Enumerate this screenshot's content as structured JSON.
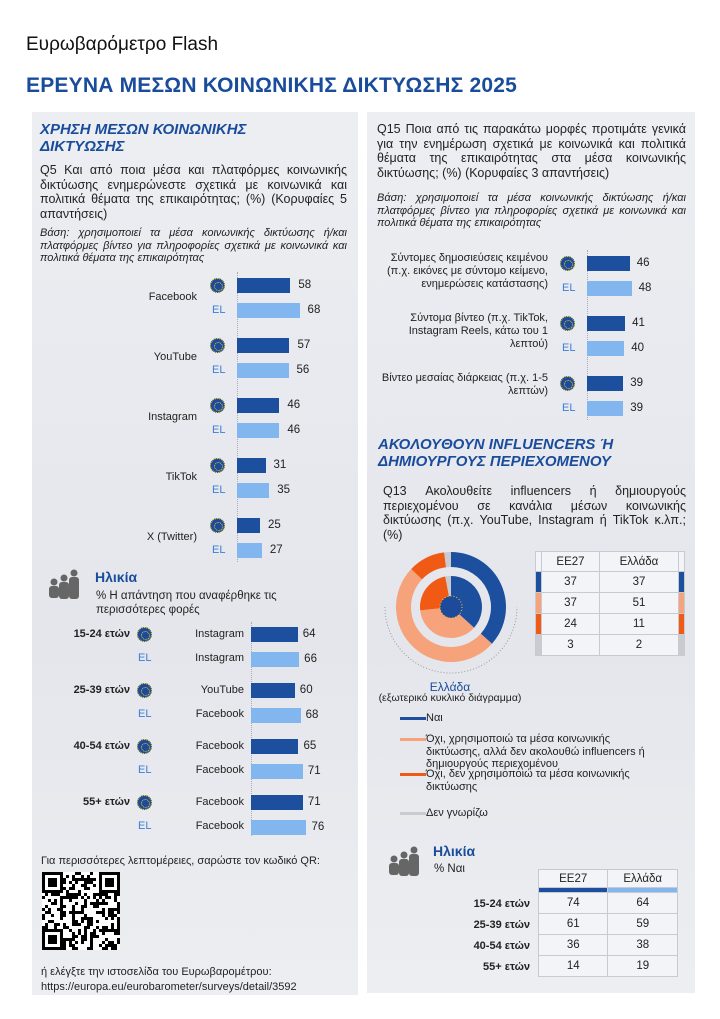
{
  "header": {
    "brand": "Ευρωβαρόμετρο Flash",
    "title": "ΕΡΕΥΝΑ ΜΕΣΩΝ ΚΟΙΝΩΝΙΚΗΣ ΔΙΚΤΥΩΣΗΣ 2025"
  },
  "colors": {
    "brand_blue": "#1a4c9c",
    "eu_bar": "#1c4f9e",
    "el_bar": "#82b6ee",
    "yes": "#1c4f9e",
    "no_not_follow": "#f6a27a",
    "no_not_use": "#f05a14",
    "dont_know": "#c9cbd1"
  },
  "icons": {
    "eu_flag": "eu-flag-icon",
    "age_group": "people-icon",
    "qr": "qr-code"
  },
  "left": {
    "section_title": "ΧΡΗΣΗ ΜΕΣΩΝ ΚΟΙΝΩΝΙΚΗΣ ΔΙΚΤΥΩΣΗΣ",
    "question": "Q5 Και από ποια μέσα και πλατφόρμες κοινωνικής δικτύωσης ενημερώνεστε σχετικά με κοινωνικά και πολιτικά θέματα της επικαιρότητας; (%) (Κορυφαίες 5 απαντήσεις)",
    "base": "Βάση: χρησιμοποιεί τα μέσα κοινωνικής δικτύωσης ή/και πλατφόρμες βίντεο για πληροφορίες σχετικά με κοινωνικά και πολιτικά θέματα της επικαιρότητας",
    "el_label": "EL",
    "platforms": [
      {
        "label": "Facebook",
        "eu": 58,
        "el": 68
      },
      {
        "label": "YouTube",
        "eu": 57,
        "el": 56
      },
      {
        "label": "Instagram",
        "eu": 46,
        "el": 46
      },
      {
        "label": "TikTok",
        "eu": 31,
        "el": 35
      },
      {
        "label": "X (Twitter)",
        "eu": 25,
        "el": 27
      }
    ],
    "age": {
      "title": "Ηλικία",
      "subtitle": "% Η απάντηση που αναφέρθηκε τις περισσότερες φορές",
      "groups": [
        {
          "age": "15-24 ετών",
          "eu_platform": "Instagram",
          "eu": 64,
          "el_platform": "Instagram",
          "el": 66
        },
        {
          "age": "25-39 ετών",
          "eu_platform": "YouTube",
          "eu": 60,
          "el_platform": "Facebook",
          "el": 68
        },
        {
          "age": "40-54 ετών",
          "eu_platform": "Facebook",
          "eu": 65,
          "el_platform": "Facebook",
          "el": 71
        },
        {
          "age": "55+ ετών",
          "eu_platform": "Facebook",
          "eu": 71,
          "el_platform": "Facebook",
          "el": 76
        }
      ]
    },
    "footer": {
      "qr_text": "Για περισσότερες λεπτομέρειες, σαρώστε τον κωδικό QR:",
      "site_text": "ή ελέγξτε την ιστοσελίδα του Ευρωβαρομέτρου:",
      "url": "https://europa.eu/eurobarometer/surveys/detail/3592"
    }
  },
  "right": {
    "question": "Q15 Ποια από τις παρακάτω μορφές προτιμάτε γενικά για την ενημέρωση σχετικά με κοινωνικά και πολιτικά θέματα της επικαιρότητας στα μέσα κοινωνικής δικτύωσης; (%) (Κορυφαίες 3 απαντήσεις)",
    "base": "Βάση: χρησιμοποιεί τα μέσα κοινωνικής δικτύωσης ή/και πλατφόρμες βίντεο για πληροφορίες σχετικά με κοινωνικά και πολιτικά θέματα της επικαιρότητας",
    "el_label": "EL",
    "formats": [
      {
        "label": "Σύντομες δημοσιεύσεις κειμένου (π.χ. εικόνες με σύντομο κείμενο, ενημερώσεις κατάστασης)",
        "eu": 46,
        "el": 48
      },
      {
        "label": "Σύντομα βίντεο (π.χ. TikTok, Instagram Reels, κάτω του 1 λεπτού)",
        "eu": 41,
        "el": 40
      },
      {
        "label": "Βίντεο μεσαίας διάρκειας (π.χ. 1-5 λεπτών)",
        "eu": 39,
        "el": 39
      }
    ],
    "influencers": {
      "section_title": "ΑΚΟΛΟΥΘΟΥΝ INFLUENCERS Ή ΔΗΜΙΟΥΡΓΟΥΣ ΠΕΡΙΕΧΟΜΕΝΟΥ",
      "question": "Q13 Ακολουθείτε influencers ή δημιουργούς περιεχομένου σε κανάλια μέσων κοινωνικής δικτύωσης (π.χ. YouTube, Instagram ή TikTok κ.λπ.; (%)",
      "donut_caption": "Ελλάδα",
      "donut_subcaption": "(εξωτερικό κυκλικό διάγραμμα)",
      "table_headers": [
        "ΕΕ27",
        "Ελλάδα"
      ],
      "answers": [
        {
          "label": "Ναι",
          "eu": 37,
          "el": 37,
          "color": "#1c4f9e"
        },
        {
          "label": "Όχι, χρησιμοποιώ τα μέσα κοινωνικής δικτύωσης, αλλά δεν ακολουθώ influencers ή δημιουργούς περιεχομένου",
          "eu": 37,
          "el": 51,
          "color": "#f6a27a"
        },
        {
          "label": "Όχι, δεν χρησιμοποιώ τα μέσα κοινωνικής δικτύωσης",
          "eu": 24,
          "el": 11,
          "color": "#f05a14"
        },
        {
          "label": "Δεν γνωρίζω",
          "eu": 3,
          "el": 2,
          "color": "#c9cbd1"
        }
      ],
      "age": {
        "title": "Ηλικία",
        "subtitle": "% Ναι",
        "headers": [
          "ΕΕ27",
          "Ελλάδα"
        ],
        "rows": [
          {
            "age": "15-24 ετών",
            "eu": 74,
            "el": 64
          },
          {
            "age": "25-39 ετών",
            "eu": 61,
            "el": 59
          },
          {
            "age": "40-54 ετών",
            "eu": 36,
            "el": 38
          },
          {
            "age": "55+ ετών",
            "eu": 14,
            "el": 19
          }
        ]
      }
    }
  }
}
